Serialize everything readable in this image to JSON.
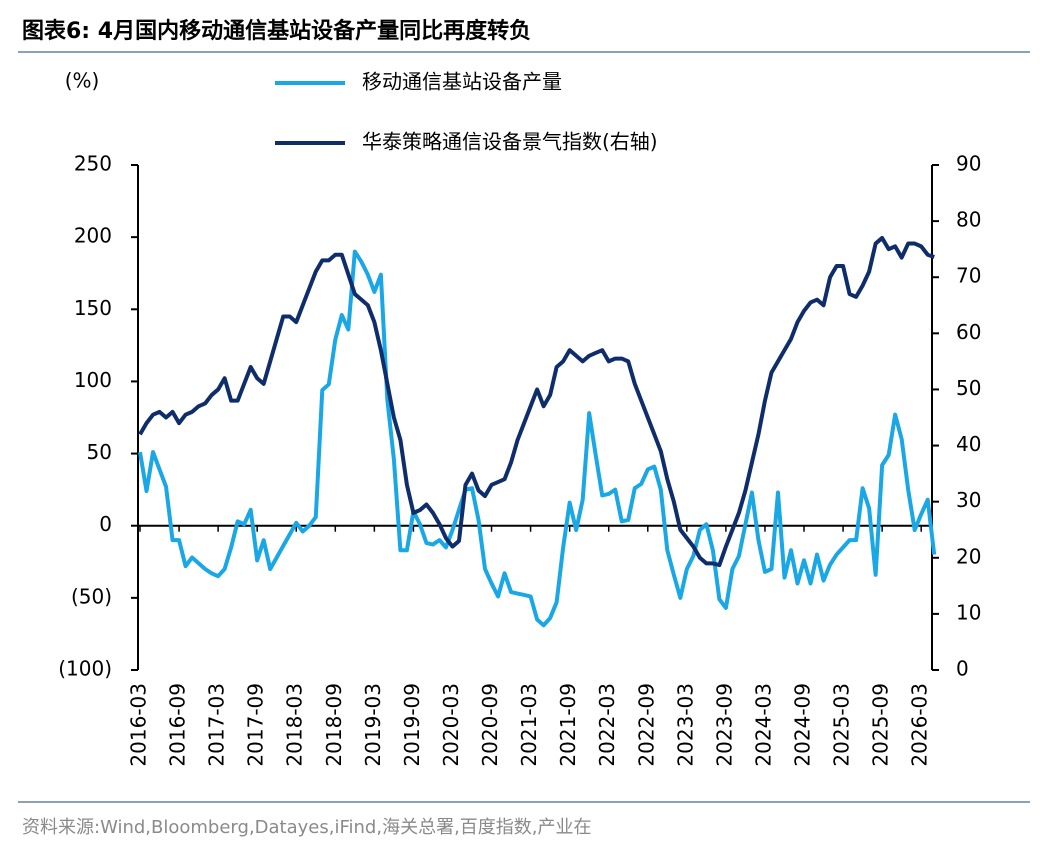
{
  "chart_data": {
    "type": "line",
    "title": "图表6:  4月国内移动通信基站设备产量同比再度转负",
    "y_label": "(%)",
    "source": "资料来源:Wind,Bloomberg,Datayes,iFind,海关总署,百度指数,产业在",
    "categories": [
      "2016-03",
      null,
      null,
      null,
      null,
      null,
      "2016-09",
      null,
      null,
      null,
      null,
      null,
      "2017-03",
      null,
      null,
      null,
      null,
      null,
      "2017-09",
      null,
      null,
      null,
      null,
      null,
      "2018-03",
      null,
      null,
      null,
      null,
      null,
      "2018-09",
      null,
      null,
      null,
      null,
      null,
      "2019-03",
      null,
      null,
      null,
      null,
      null,
      "2019-09",
      null,
      null,
      null,
      null,
      null,
      "2020-03",
      null,
      null,
      null,
      null,
      null,
      "2020-09",
      null,
      null,
      null,
      null,
      null,
      "2021-03",
      null,
      null,
      null,
      null,
      null,
      "2021-09",
      null,
      null,
      null,
      null,
      null,
      "2022-03",
      null,
      null,
      null,
      null,
      null,
      "2022-09",
      null,
      null,
      null,
      null,
      null,
      "2023-03",
      null,
      null,
      null,
      null,
      null,
      "2023-09",
      null,
      null,
      null,
      null,
      null,
      "2024-03",
      null,
      null,
      null,
      null,
      null,
      "2024-09",
      null,
      null,
      null,
      null,
      null,
      "2025-03",
      null,
      null,
      null,
      null,
      null,
      "2025-09",
      null,
      null,
      null,
      null,
      null,
      "2026-03",
      null,
      null
    ],
    "series": [
      {
        "name": "移动通信基站设备产量",
        "color": "#1aa7e6",
        "values": [
          51,
          24,
          51,
          39,
          27,
          -10,
          -10,
          -28,
          -22,
          -26,
          -30,
          -33,
          -35,
          -30,
          -15,
          3,
          1,
          11,
          -24,
          -10,
          -30,
          -22,
          -14,
          -6,
          2,
          -4,
          0,
          6,
          94,
          98,
          129,
          146,
          136,
          190,
          183,
          174,
          162,
          174,
          87,
          46,
          -17,
          -17,
          10,
          1,
          -12,
          -13,
          -10,
          -15,
          -3,
          11,
          25,
          26,
          4,
          -30,
          -40,
          -49,
          -33,
          -46,
          -47,
          -48,
          -49,
          -65,
          -69,
          -64,
          -53,
          -15,
          16,
          -3,
          18,
          78,
          49,
          21,
          22,
          25,
          3,
          4,
          26,
          29,
          39,
          41,
          25,
          -17,
          -34,
          -50,
          -30,
          -21,
          -3,
          1,
          -17,
          -51,
          -57,
          -30,
          -21,
          1,
          23,
          -10,
          -32,
          -30,
          23,
          -36,
          -17,
          -40,
          -24,
          -40,
          -20,
          -38,
          -27,
          -20,
          -15,
          -10,
          -10,
          26,
          12,
          -34,
          42,
          49,
          77,
          60,
          25,
          -3,
          8,
          18,
          -20
        ]
      },
      {
        "name": "华泰策略通信设备景气指数(右轴)",
        "color": "#0f2d6b",
        "axis": "y2",
        "values": [
          42,
          44,
          45.5,
          46,
          45,
          46,
          44,
          45.5,
          46,
          47,
          47.5,
          49,
          50,
          52,
          48,
          48,
          51,
          54,
          52,
          51,
          55,
          59,
          63,
          63,
          62,
          65,
          68,
          71,
          73,
          73,
          74,
          74,
          70.5,
          67,
          66,
          65,
          62,
          57,
          51,
          45,
          41,
          33,
          28,
          28.5,
          29.5,
          28,
          26,
          23.5,
          22,
          23,
          33,
          35,
          32,
          31,
          33,
          33.5,
          34,
          37,
          41,
          44,
          47,
          50,
          47,
          49,
          54,
          55,
          57,
          56,
          55,
          56,
          56.5,
          57,
          55,
          55.5,
          55.5,
          55,
          51,
          48,
          45,
          42,
          39,
          34,
          30,
          25,
          23.5,
          22,
          20,
          19,
          19,
          18.7,
          22,
          25,
          28,
          32,
          37,
          42,
          48,
          53,
          55,
          57,
          59,
          62,
          64,
          65.5,
          66,
          65,
          70,
          72,
          72,
          67,
          66.5,
          68.5,
          71,
          76,
          77,
          75,
          75.5,
          73.5,
          76,
          76,
          75.5,
          74,
          73.6
        ]
      }
    ],
    "ylim": [
      -100,
      250
    ],
    "yticks": [
      250,
      200,
      150,
      100,
      50,
      0,
      {
        "value": -50,
        "label": "(50)"
      },
      {
        "value": -100,
        "label": "(100)"
      }
    ],
    "y2lim": [
      0,
      90
    ],
    "y2ticks": [
      90,
      80,
      70,
      60,
      50,
      40,
      30,
      20,
      10,
      0
    ]
  }
}
